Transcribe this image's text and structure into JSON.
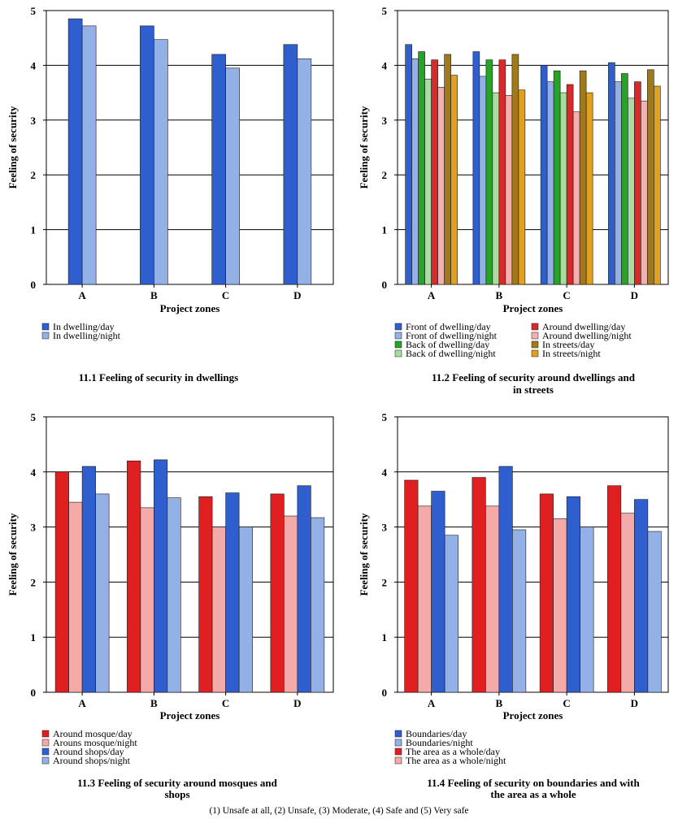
{
  "footnote": "(1) Unsafe at all, (2) Unsafe, (3) Moderate, (4) Safe and (5) Very safe",
  "chart_data": [
    {
      "type": "bar",
      "caption_lines": [
        "11.1  Feeling of security in dwellings"
      ],
      "xlabel": "Project zones",
      "ylabel": "Feeling of security",
      "ylim": [
        0,
        5
      ],
      "yticks": [
        "0",
        "1",
        "2",
        "3",
        "4",
        "5"
      ],
      "grid": true,
      "legend_position": "bottom-left",
      "categories": [
        "A",
        "B",
        "C",
        "D"
      ],
      "series": [
        {
          "name": "In dwelling/day",
          "color": "#2f5fcf",
          "values": [
            4.85,
            4.72,
            4.2,
            4.38
          ]
        },
        {
          "name": "In dwelling/night",
          "color": "#93b1e6",
          "values": [
            4.72,
            4.47,
            3.95,
            4.12
          ]
        }
      ]
    },
    {
      "type": "bar",
      "caption_lines": [
        "11.2  Feeling of security around dwellings and",
        "in streets"
      ],
      "xlabel": "Project zones",
      "ylabel": "Feeling of security",
      "ylim": [
        0,
        5
      ],
      "yticks": [
        "0",
        "1",
        "2",
        "3",
        "4",
        "5"
      ],
      "grid": true,
      "legend_position": "bottom-left",
      "legend_columns": 2,
      "categories": [
        "A",
        "B",
        "C",
        "D"
      ],
      "series": [
        {
          "name": "Front of dwelling/day",
          "color": "#2f5fcf",
          "values": [
            4.38,
            4.25,
            4.0,
            4.05
          ]
        },
        {
          "name": "Front of dwelling/night",
          "color": "#93b1e6",
          "values": [
            4.12,
            3.8,
            3.7,
            3.7
          ]
        },
        {
          "name": "Back of dwelling/day",
          "color": "#27a327",
          "values": [
            4.25,
            4.1,
            3.9,
            3.85
          ]
        },
        {
          "name": "Back of dwelling/night",
          "color": "#a8dca0",
          "values": [
            3.75,
            3.5,
            3.5,
            3.4
          ]
        },
        {
          "name": "Around dwelling/day",
          "color": "#d72a2a",
          "values": [
            4.1,
            4.1,
            3.65,
            3.7
          ]
        },
        {
          "name": "Around dwelling/night",
          "color": "#f3b0ae",
          "values": [
            3.6,
            3.45,
            3.15,
            3.35
          ]
        },
        {
          "name": "In streets/day",
          "color": "#a07a1a",
          "values": [
            4.2,
            4.2,
            3.9,
            3.92
          ]
        },
        {
          "name": "In streets/night",
          "color": "#e0a020",
          "values": [
            3.82,
            3.55,
            3.5,
            3.62
          ]
        }
      ]
    },
    {
      "type": "bar",
      "caption_lines": [
        "11.3  Feeling of security around mosques and",
        "shops"
      ],
      "xlabel": "Project zones",
      "ylabel": "Feeling of security",
      "ylim": [
        0,
        5
      ],
      "yticks": [
        "0",
        "1",
        "2",
        "3",
        "4",
        "5"
      ],
      "grid": true,
      "legend_position": "bottom-left",
      "categories": [
        "A",
        "B",
        "C",
        "D"
      ],
      "series": [
        {
          "name": "Around mosque/day",
          "color": "#e02020",
          "values": [
            4.0,
            4.2,
            3.55,
            3.6
          ]
        },
        {
          "name": "Arouns mosque/night",
          "color": "#f3aaa8",
          "values": [
            3.45,
            3.35,
            3.0,
            3.2
          ]
        },
        {
          "name": "Around shops/day",
          "color": "#2f5fcf",
          "values": [
            4.1,
            4.22,
            3.62,
            3.75
          ]
        },
        {
          "name": "Around shops/night",
          "color": "#93b1e6",
          "values": [
            3.6,
            3.53,
            3.0,
            3.17
          ]
        }
      ]
    },
    {
      "type": "bar",
      "caption_lines": [
        "11.4   Feeling of security on boundaries and with",
        "the area as a whole"
      ],
      "xlabel": "Project zones",
      "ylabel": "Feeling of security",
      "ylim": [
        0,
        5
      ],
      "yticks": [
        "0",
        "1",
        "2",
        "3",
        "4",
        "5"
      ],
      "grid": true,
      "legend_position": "bottom-left",
      "categories": [
        "A",
        "B",
        "C",
        "D"
      ],
      "series": [
        {
          "name": "The area as a whole/day",
          "color": "#e02020",
          "values": [
            3.85,
            3.9,
            3.6,
            3.75
          ]
        },
        {
          "name": "The area as a whole/night",
          "color": "#f3aaa8",
          "values": [
            3.38,
            3.38,
            3.15,
            3.25
          ]
        },
        {
          "name": "Boundaries/day",
          "color": "#2f5fcf",
          "values": [
            3.65,
            4.1,
            3.55,
            3.5
          ]
        },
        {
          "name": "Boundaries/night",
          "color": "#93b1e6",
          "values": [
            2.85,
            2.95,
            3.0,
            2.92
          ]
        }
      ],
      "legend_order": [
        2,
        3,
        0,
        1
      ]
    }
  ]
}
